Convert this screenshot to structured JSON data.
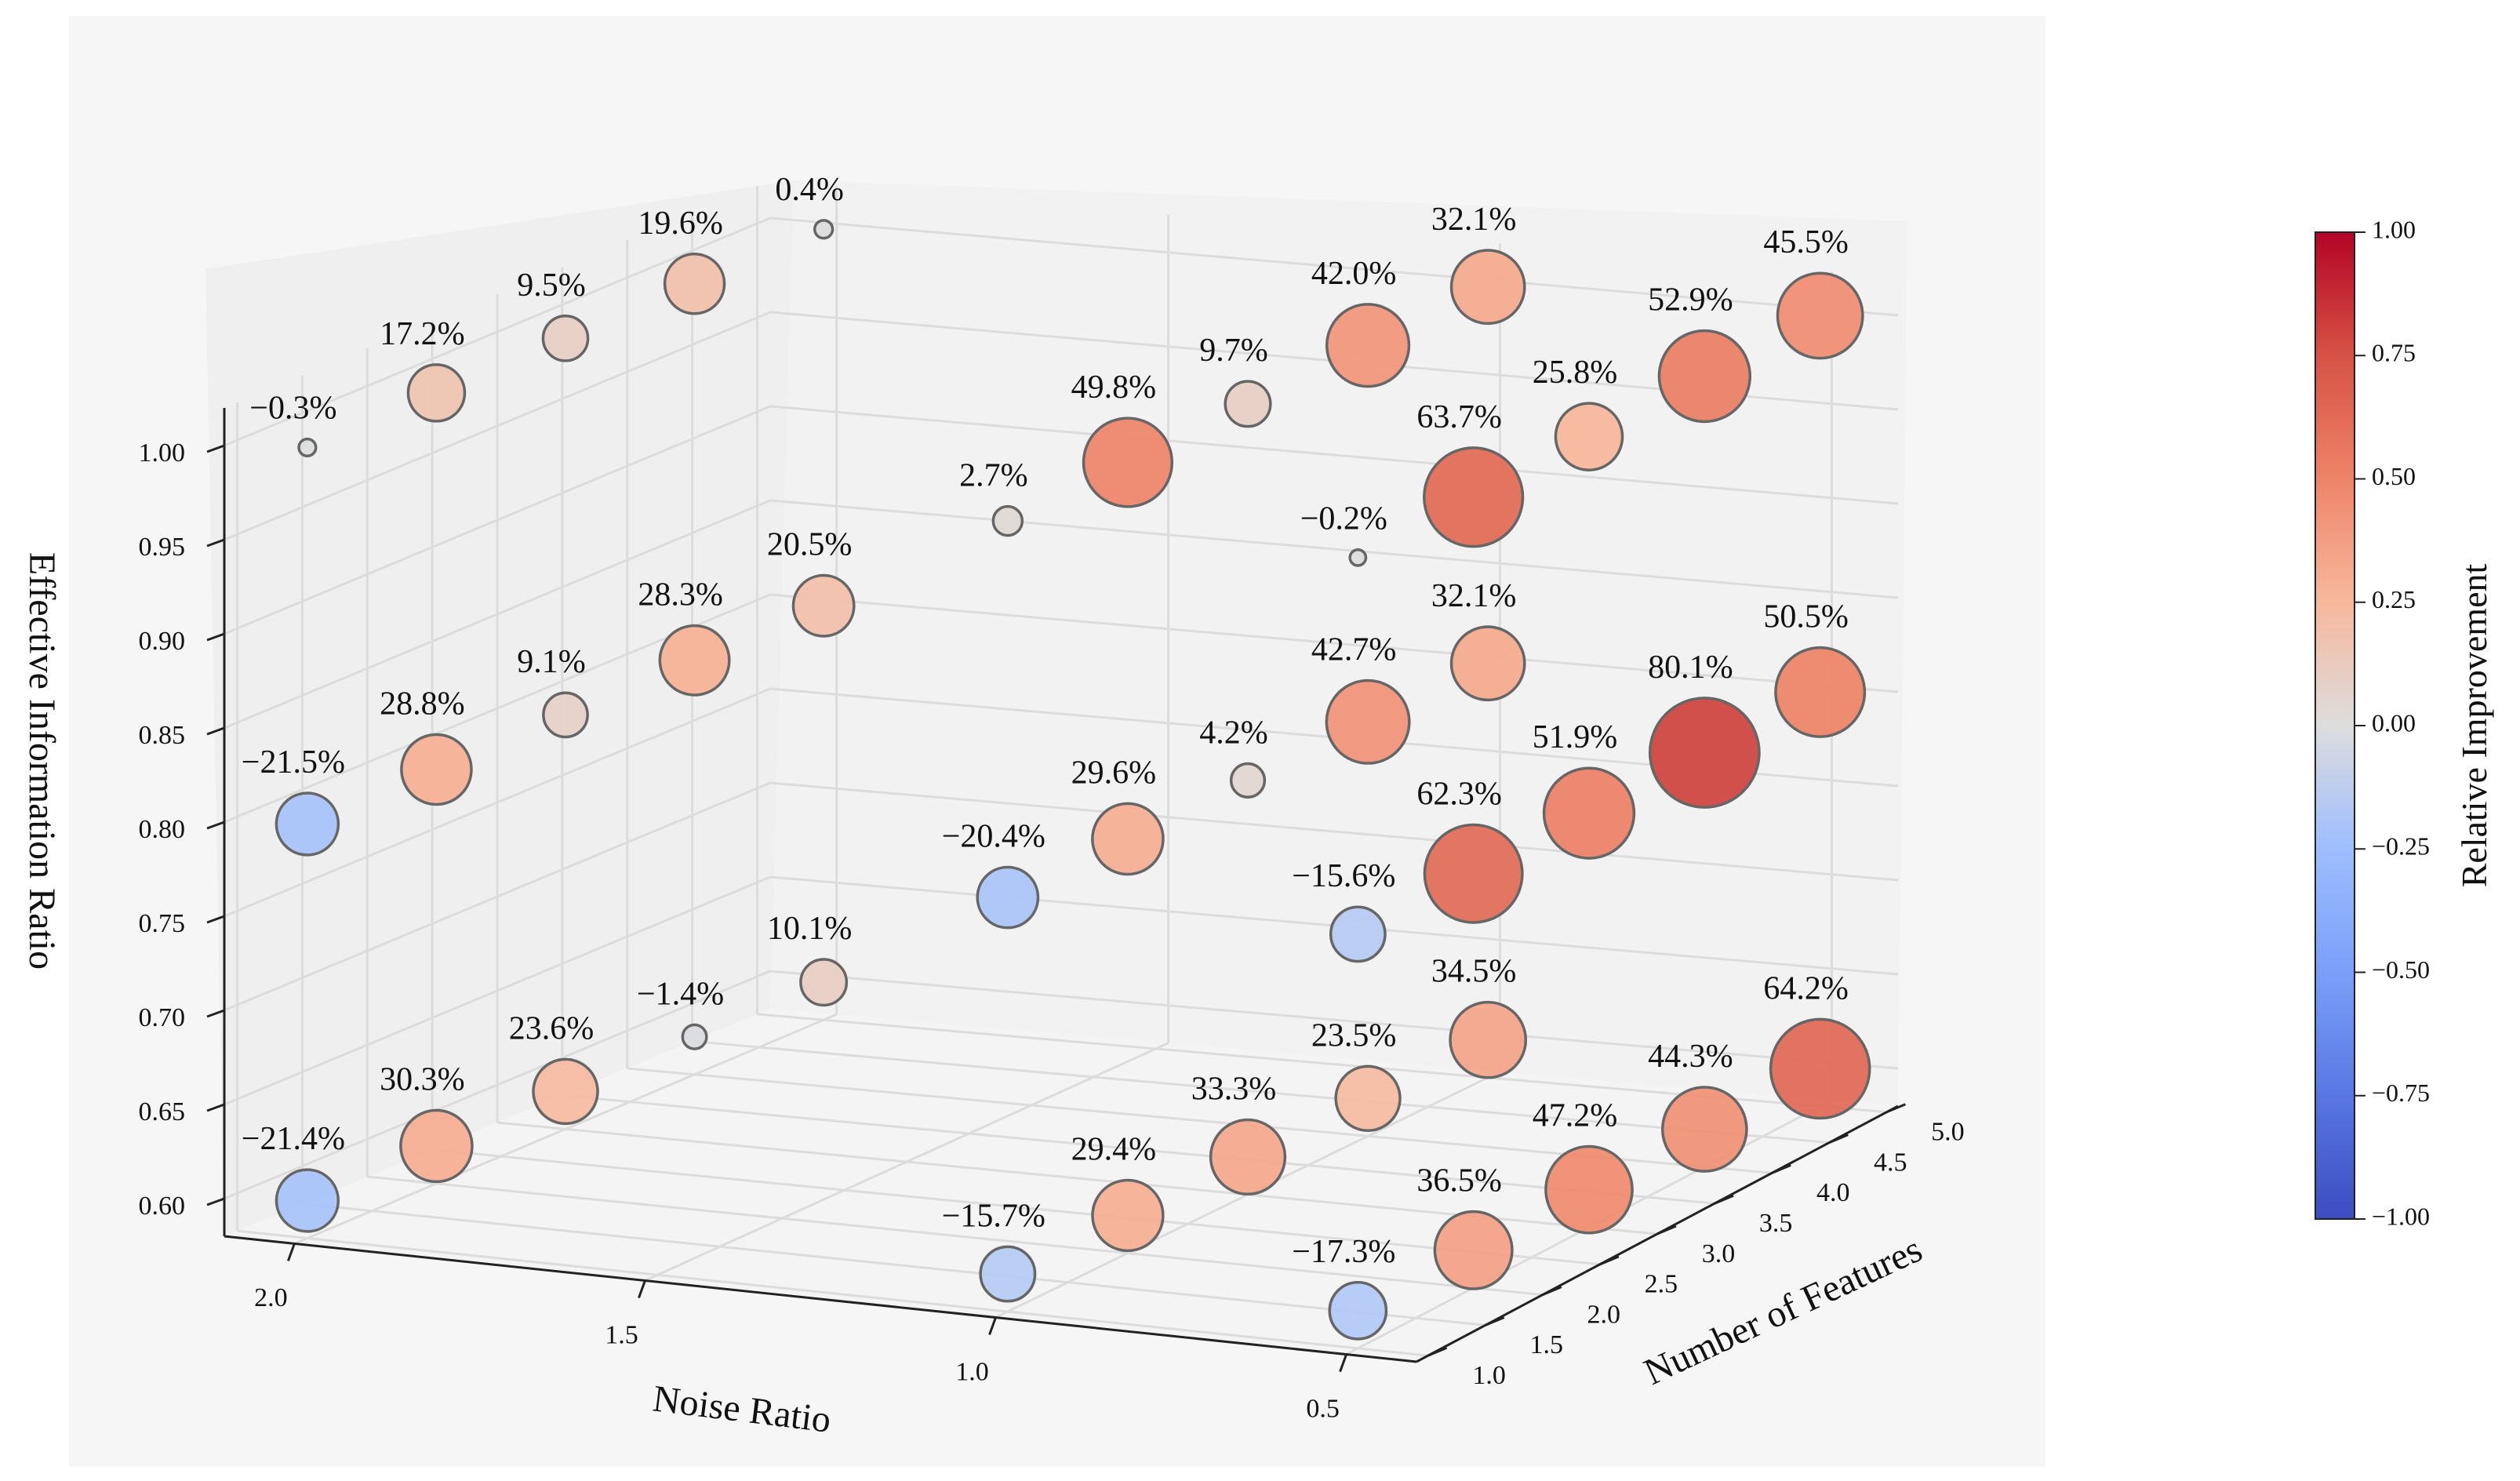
{
  "chart_data": {
    "type": "scatter",
    "projection": "3d",
    "xlabel": "Noise Ratio",
    "ylabel": "Number of Features",
    "zlabel": "Effective Information Ratio",
    "x_ticks": [
      "0.5",
      "1.0",
      "1.5",
      "2.0"
    ],
    "y_ticks": [
      "1.0",
      "1.5",
      "2.0",
      "2.5",
      "3.0",
      "3.5",
      "4.0",
      "4.5",
      "5.0"
    ],
    "z_ticks": [
      "0.60",
      "0.65",
      "0.70",
      "0.75",
      "0.80",
      "0.85",
      "0.90",
      "0.95",
      "1.00"
    ],
    "xlim": [
      0.4,
      2.1
    ],
    "ylim": [
      0.9,
      5.1
    ],
    "zlim": [
      0.58,
      1.02
    ],
    "grid": true,
    "colorbar": {
      "label": "Relative Improvement",
      "range": [
        -1.0,
        1.0
      ],
      "ticks": [
        "1.00",
        "0.75",
        "0.50",
        "0.25",
        "0.00",
        "−0.25",
        "−0.50",
        "−0.75",
        "−1.00"
      ],
      "colors": {
        "low": "#3b4cc0",
        "mid": "#dddddd",
        "high": "#b40426"
      }
    },
    "points": [
      {
        "x": 2.0,
        "y": 1,
        "z": 1.0,
        "value": -0.003,
        "label": "−0.3%"
      },
      {
        "x": 2.0,
        "y": 2,
        "z": 1.0,
        "value": 0.172,
        "label": "17.2%"
      },
      {
        "x": 2.0,
        "y": 3,
        "z": 1.0,
        "value": 0.095,
        "label": "9.5%"
      },
      {
        "x": 2.0,
        "y": 4,
        "z": 1.0,
        "value": 0.196,
        "label": "19.6%"
      },
      {
        "x": 2.0,
        "y": 5,
        "z": 1.0,
        "value": 0.004,
        "label": "0.4%"
      },
      {
        "x": 1.0,
        "y": 1,
        "z": 1.0,
        "value": 0.027,
        "label": "2.7%"
      },
      {
        "x": 1.0,
        "y": 2,
        "z": 1.0,
        "value": 0.498,
        "label": "49.8%"
      },
      {
        "x": 1.0,
        "y": 3,
        "z": 1.0,
        "value": 0.097,
        "label": "9.7%"
      },
      {
        "x": 1.0,
        "y": 4,
        "z": 1.0,
        "value": 0.42,
        "label": "42.0%"
      },
      {
        "x": 1.0,
        "y": 5,
        "z": 1.0,
        "value": 0.321,
        "label": "32.1%"
      },
      {
        "x": 0.5,
        "y": 1,
        "z": 1.0,
        "value": -0.002,
        "label": "−0.2%"
      },
      {
        "x": 0.5,
        "y": 2,
        "z": 1.0,
        "value": 0.637,
        "label": "63.7%"
      },
      {
        "x": 0.5,
        "y": 3,
        "z": 1.0,
        "value": 0.258,
        "label": "25.8%"
      },
      {
        "x": 0.5,
        "y": 4,
        "z": 1.0,
        "value": 0.529,
        "label": "52.9%"
      },
      {
        "x": 0.5,
        "y": 5,
        "z": 1.0,
        "value": 0.455,
        "label": "45.5%"
      },
      {
        "x": 2.0,
        "y": 1,
        "z": 0.8,
        "value": -0.215,
        "label": "−21.5%"
      },
      {
        "x": 2.0,
        "y": 2,
        "z": 0.8,
        "value": 0.288,
        "label": "28.8%"
      },
      {
        "x": 2.0,
        "y": 3,
        "z": 0.8,
        "value": 0.091,
        "label": "9.1%"
      },
      {
        "x": 2.0,
        "y": 4,
        "z": 0.8,
        "value": 0.283,
        "label": "28.3%"
      },
      {
        "x": 2.0,
        "y": 5,
        "z": 0.8,
        "value": 0.205,
        "label": "20.5%"
      },
      {
        "x": 1.0,
        "y": 1,
        "z": 0.8,
        "value": -0.204,
        "label": "−20.4%"
      },
      {
        "x": 1.0,
        "y": 2,
        "z": 0.8,
        "value": 0.296,
        "label": "29.6%"
      },
      {
        "x": 1.0,
        "y": 3,
        "z": 0.8,
        "value": 0.042,
        "label": "4.2%"
      },
      {
        "x": 1.0,
        "y": 4,
        "z": 0.8,
        "value": 0.427,
        "label": "42.7%"
      },
      {
        "x": 1.0,
        "y": 5,
        "z": 0.8,
        "value": 0.321,
        "label": "32.1%"
      },
      {
        "x": 0.5,
        "y": 1,
        "z": 0.8,
        "value": -0.156,
        "label": "−15.6%"
      },
      {
        "x": 0.5,
        "y": 2,
        "z": 0.8,
        "value": 0.623,
        "label": "62.3%"
      },
      {
        "x": 0.5,
        "y": 3,
        "z": 0.8,
        "value": 0.519,
        "label": "51.9%"
      },
      {
        "x": 0.5,
        "y": 4,
        "z": 0.8,
        "value": 0.801,
        "label": "80.1%"
      },
      {
        "x": 0.5,
        "y": 5,
        "z": 0.8,
        "value": 0.505,
        "label": "50.5%"
      },
      {
        "x": 2.0,
        "y": 1,
        "z": 0.6,
        "value": -0.214,
        "label": "−21.4%"
      },
      {
        "x": 2.0,
        "y": 2,
        "z": 0.6,
        "value": 0.303,
        "label": "30.3%"
      },
      {
        "x": 2.0,
        "y": 3,
        "z": 0.6,
        "value": 0.236,
        "label": "23.6%"
      },
      {
        "x": 2.0,
        "y": 4,
        "z": 0.6,
        "value": -0.014,
        "label": "−1.4%"
      },
      {
        "x": 2.0,
        "y": 5,
        "z": 0.6,
        "value": 0.101,
        "label": "10.1%"
      },
      {
        "x": 1.0,
        "y": 1,
        "z": 0.6,
        "value": -0.157,
        "label": "−15.7%"
      },
      {
        "x": 1.0,
        "y": 2,
        "z": 0.6,
        "value": 0.294,
        "label": "29.4%"
      },
      {
        "x": 1.0,
        "y": 3,
        "z": 0.6,
        "value": 0.333,
        "label": "33.3%"
      },
      {
        "x": 1.0,
        "y": 4,
        "z": 0.6,
        "value": 0.235,
        "label": "23.5%"
      },
      {
        "x": 1.0,
        "y": 5,
        "z": 0.6,
        "value": 0.345,
        "label": "34.5%"
      },
      {
        "x": 0.5,
        "y": 1,
        "z": 0.6,
        "value": -0.173,
        "label": "−17.3%"
      },
      {
        "x": 0.5,
        "y": 2,
        "z": 0.6,
        "value": 0.365,
        "label": "36.5%"
      },
      {
        "x": 0.5,
        "y": 3,
        "z": 0.6,
        "value": 0.472,
        "label": "47.2%"
      },
      {
        "x": 0.5,
        "y": 4,
        "z": 0.6,
        "value": 0.443,
        "label": "44.3%"
      },
      {
        "x": 0.5,
        "y": 5,
        "z": 0.6,
        "value": 0.642,
        "label": "64.2%"
      }
    ]
  }
}
